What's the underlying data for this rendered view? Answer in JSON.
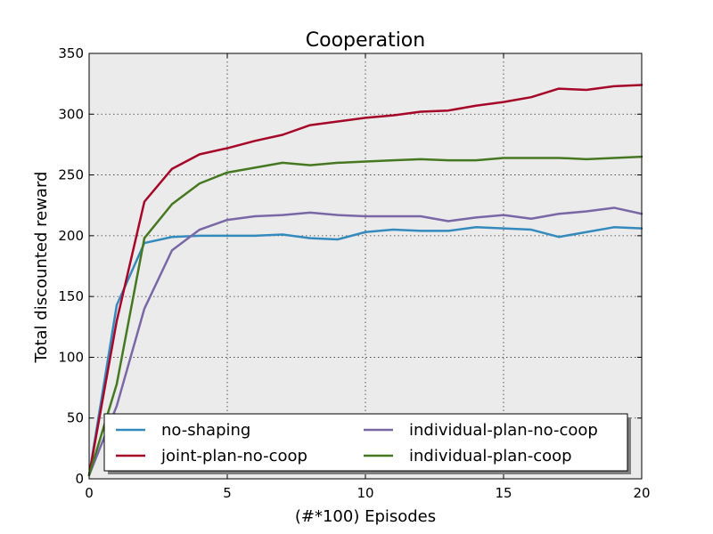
{
  "chart_data": {
    "type": "line",
    "title": "Cooperation",
    "xlabel": "(#*100) Episodes",
    "ylabel": "Total discounted reward",
    "xlim": [
      0,
      20
    ],
    "ylim": [
      0,
      350
    ],
    "xticks": [
      0,
      5,
      10,
      15,
      20
    ],
    "yticks": [
      0,
      50,
      100,
      150,
      200,
      250,
      300,
      350
    ],
    "grid": true,
    "legend_position": "lower center, two columns",
    "x": [
      0,
      1,
      2,
      3,
      4,
      5,
      6,
      7,
      8,
      9,
      10,
      11,
      12,
      13,
      14,
      15,
      16,
      17,
      18,
      19,
      20
    ],
    "series": [
      {
        "name": "no-shaping",
        "color": "#348abd",
        "values": [
          3,
          143,
          194,
          199,
          200,
          200,
          200,
          201,
          198,
          197,
          203,
          205,
          204,
          204,
          207,
          206,
          205,
          199,
          203,
          207,
          206
        ]
      },
      {
        "name": "joint-plan-no-coop",
        "color": "#a60628",
        "values": [
          3,
          130,
          228,
          255,
          267,
          272,
          278,
          283,
          291,
          294,
          297,
          299,
          302,
          303,
          307,
          310,
          314,
          321,
          320,
          323,
          324
        ]
      },
      {
        "name": "individual-plan-no-coop",
        "color": "#7a68a6",
        "values": [
          3,
          60,
          140,
          188,
          205,
          213,
          216,
          217,
          219,
          217,
          216,
          216,
          216,
          212,
          215,
          217,
          214,
          218,
          220,
          223,
          218
        ]
      },
      {
        "name": "individual-plan-coop",
        "color": "#467821",
        "values": [
          3,
          78,
          198,
          226,
          243,
          252,
          256,
          260,
          258,
          260,
          261,
          262,
          263,
          262,
          262,
          264,
          264,
          264,
          263,
          264,
          265
        ]
      }
    ]
  }
}
